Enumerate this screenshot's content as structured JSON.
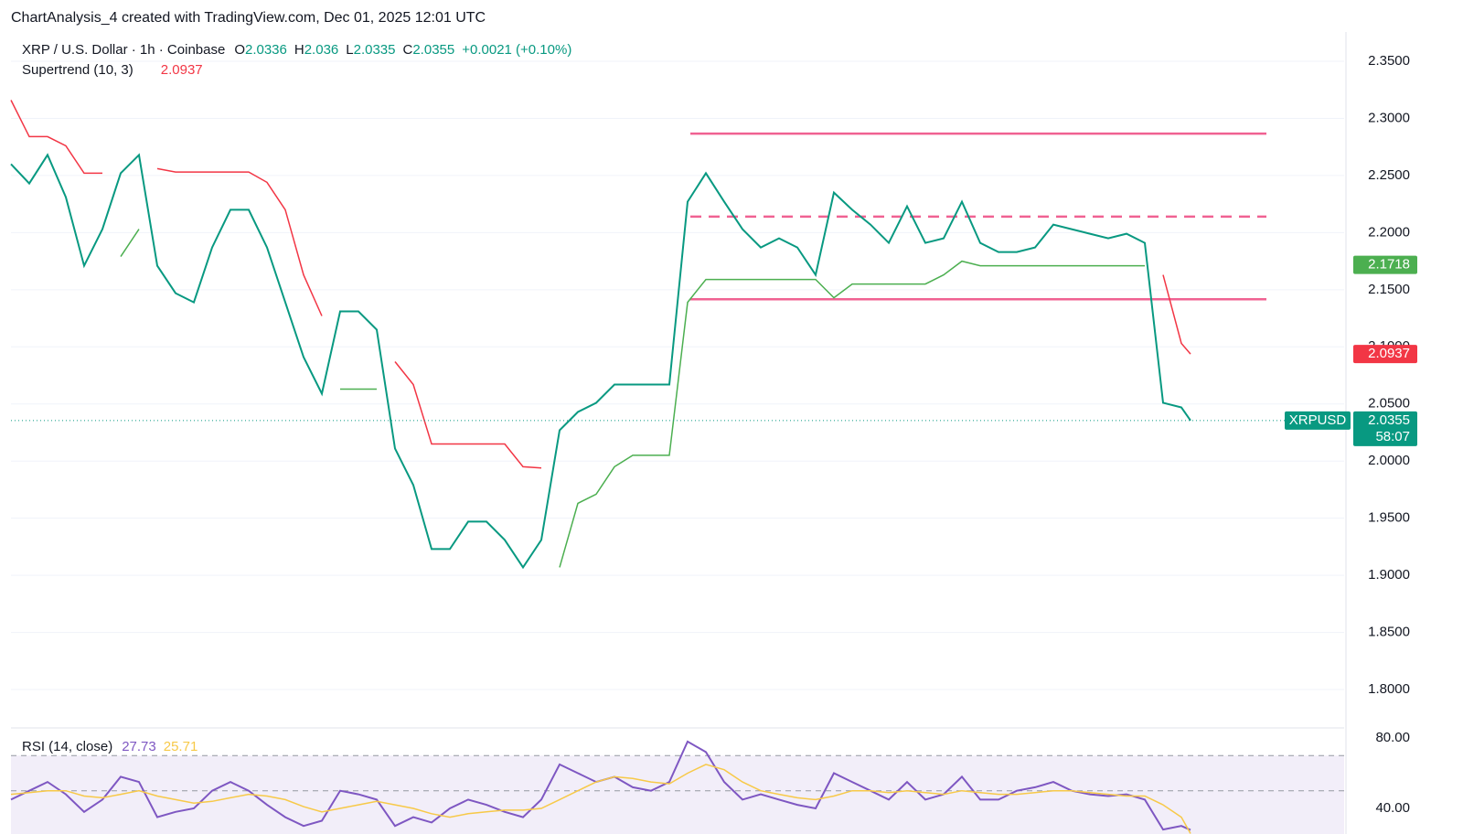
{
  "header": {
    "text": "ChartAnalysis_4 created with TradingView.com, Dec 01, 2025 12:01 UTC"
  },
  "chart_data": [
    {
      "type": "line",
      "title": "XRP / U.S. Dollar · 1h · Coinbase",
      "ohlc": [
        {
          "label": "O",
          "value": 2.0336
        },
        {
          "label": "H",
          "value": 2.036
        },
        {
          "label": "L",
          "value": 2.0335
        },
        {
          "label": "C",
          "value": 2.0355
        }
      ],
      "change": "+0.0021 (+0.10%)",
      "indicator": {
        "name": "Supertrend (10, 3)",
        "value": 2.0937
      },
      "symbol": "XRPUSD",
      "current_price": 2.0355,
      "countdown": "58:07",
      "marker_price": 2.1718,
      "xlim": [
        0,
        72.9
      ],
      "ylim": [
        1.7672,
        2.3756
      ],
      "yticks": [
        {
          "value": 1.8,
          "label": "1.8000"
        },
        {
          "value": 1.85,
          "label": "1.8500"
        },
        {
          "value": 1.9,
          "label": "1.9000"
        },
        {
          "value": 1.95,
          "label": "1.9500"
        },
        {
          "value": 2.0,
          "label": "2.0000"
        },
        {
          "value": 2.05,
          "label": "2.0500"
        },
        {
          "value": 2.1,
          "label": "2.1000"
        },
        {
          "value": 2.15,
          "label": "2.1500"
        },
        {
          "value": 2.2,
          "label": "2.2000"
        },
        {
          "value": 2.25,
          "label": "2.2500"
        },
        {
          "value": 2.3,
          "label": "2.3000"
        },
        {
          "value": 2.35,
          "label": "2.3500"
        }
      ],
      "grid": true,
      "x": [
        0,
        1,
        2,
        3,
        4,
        5,
        6,
        7,
        8,
        9,
        10,
        11,
        12,
        13,
        14,
        15,
        16,
        17,
        18,
        19,
        20,
        21,
        22,
        23,
        24,
        25,
        26,
        27,
        28,
        29,
        30,
        31,
        32,
        33,
        34,
        35,
        36,
        37,
        38,
        39,
        40,
        41,
        42,
        43,
        44,
        45,
        46,
        47,
        48,
        49,
        50,
        51,
        52,
        53,
        54,
        55,
        56,
        57,
        58,
        59,
        60,
        61,
        62,
        63,
        64,
        64.5
      ],
      "series": [
        {
          "name": "XRPUSD",
          "color": "#089981",
          "values": [
            2.26,
            2.243,
            2.268,
            2.231,
            2.171,
            2.203,
            2.252,
            2.268,
            2.171,
            2.147,
            2.139,
            2.187,
            2.22,
            2.22,
            2.187,
            2.139,
            2.091,
            2.059,
            2.131,
            2.131,
            2.115,
            2.011,
            1.979,
            1.923,
            1.923,
            1.947,
            1.947,
            1.931,
            1.907,
            1.931,
            2.027,
            2.043,
            2.051,
            2.067,
            2.067,
            2.067,
            2.067,
            2.227,
            2.252,
            2.227,
            2.203,
            2.187,
            2.195,
            2.187,
            2.163,
            2.235,
            2.22,
            2.207,
            2.191,
            2.223,
            2.191,
            2.195,
            2.227,
            2.191,
            2.183,
            2.183,
            2.187,
            2.207,
            2.203,
            2.199,
            2.195,
            2.199,
            2.191,
            2.051,
            2.047,
            2.0355
          ]
        },
        {
          "name": "Supertrend (10, 3)",
          "color": "#f23645",
          "values": [
            2.316,
            2.284,
            2.284,
            2.276,
            2.252,
            2.252,
            null,
            null,
            2.256,
            2.253,
            2.253,
            2.253,
            2.253,
            2.253,
            2.244,
            2.22,
            2.163,
            2.127,
            null,
            null,
            null,
            2.087,
            2.067,
            2.015,
            2.015,
            2.015,
            2.015,
            2.015,
            1.995,
            1.994,
            null,
            null,
            null,
            null,
            null,
            null,
            null,
            null,
            null,
            null,
            null,
            null,
            null,
            null,
            null,
            null,
            null,
            null,
            null,
            null,
            null,
            null,
            null,
            null,
            null,
            null,
            null,
            null,
            null,
            null,
            null,
            null,
            null,
            2.163,
            2.103,
            2.0937
          ]
        },
        {
          "name": "Supertrend (10, 3)",
          "color": "#4caf50",
          "values": [
            null,
            null,
            null,
            null,
            null,
            null,
            2.179,
            2.203,
            null,
            null,
            null,
            null,
            null,
            null,
            null,
            null,
            null,
            null,
            2.063,
            2.063,
            2.063,
            null,
            null,
            null,
            null,
            null,
            null,
            null,
            null,
            null,
            1.907,
            1.963,
            1.971,
            1.995,
            2.005,
            2.005,
            2.005,
            2.139,
            2.159,
            2.159,
            2.159,
            2.159,
            2.159,
            2.159,
            2.159,
            2.143,
            2.155,
            2.155,
            2.155,
            2.155,
            2.155,
            2.163,
            2.175,
            2.171,
            2.171,
            2.171,
            2.171,
            2.171,
            2.171,
            2.171,
            2.171,
            2.171,
            2.171,
            null,
            null,
            null
          ]
        }
      ],
      "levels": [
        {
          "value": 2.2866,
          "x": [
            37.15,
            68.65
          ],
          "color": "#f06292",
          "dashed": false
        },
        {
          "value": 2.214,
          "x": [
            37.15,
            68.65
          ],
          "color": "#f06292",
          "dashed": true
        },
        {
          "value": 2.1416,
          "x": [
            37.15,
            68.65
          ],
          "color": "#f06292",
          "dashed": false
        }
      ]
    },
    {
      "type": "line",
      "title": "RSI (14, close)",
      "xlim": [
        0,
        72.9
      ],
      "ylim": [
        25.45,
        85.2
      ],
      "yticks": [
        {
          "value": 80,
          "label": "80.00"
        },
        {
          "value": 40,
          "label": "40.00"
        }
      ],
      "bands": [
        70,
        50
      ],
      "x": [
        0,
        1,
        2,
        3,
        4,
        5,
        6,
        7,
        8,
        9,
        10,
        11,
        12,
        13,
        14,
        15,
        16,
        17,
        18,
        19,
        20,
        21,
        22,
        23,
        24,
        25,
        26,
        27,
        28,
        29,
        30,
        31,
        32,
        33,
        34,
        35,
        36,
        37,
        38,
        39,
        40,
        41,
        42,
        43,
        44,
        45,
        46,
        47,
        48,
        49,
        50,
        51,
        52,
        53,
        54,
        55,
        56,
        57,
        58,
        59,
        60,
        61,
        62,
        63,
        64,
        64.5
      ],
      "series": [
        {
          "name": "RSI",
          "color": "#7e57c2",
          "values": [
            45,
            50,
            55,
            48,
            38,
            45,
            58,
            55,
            35,
            38,
            40,
            50,
            55,
            50,
            42,
            35,
            30,
            33,
            50,
            48,
            45,
            30,
            35,
            32,
            40,
            45,
            42,
            38,
            35,
            45,
            65,
            60,
            55,
            58,
            52,
            50,
            55,
            78,
            72,
            55,
            45,
            48,
            45,
            42,
            40,
            60,
            55,
            50,
            45,
            55,
            45,
            48,
            58,
            45,
            45,
            50,
            52,
            55,
            50,
            48,
            47,
            48,
            45,
            28,
            30,
            27.73
          ]
        },
        {
          "name": "MA",
          "color": "#f7c948",
          "values": [
            48,
            49,
            50,
            50,
            47,
            46,
            48,
            50,
            47,
            45,
            43,
            44,
            46,
            48,
            47,
            45,
            41,
            38,
            40,
            42,
            44,
            42,
            40,
            37,
            35,
            37,
            38,
            39,
            39,
            40,
            45,
            50,
            55,
            58,
            57,
            55,
            54,
            60,
            65,
            62,
            55,
            50,
            48,
            46,
            45,
            47,
            50,
            50,
            49,
            50,
            49,
            48,
            50,
            49,
            48,
            48,
            49,
            50,
            50,
            49,
            48,
            47,
            47,
            42,
            35,
            25.71
          ]
        }
      ]
    }
  ]
}
